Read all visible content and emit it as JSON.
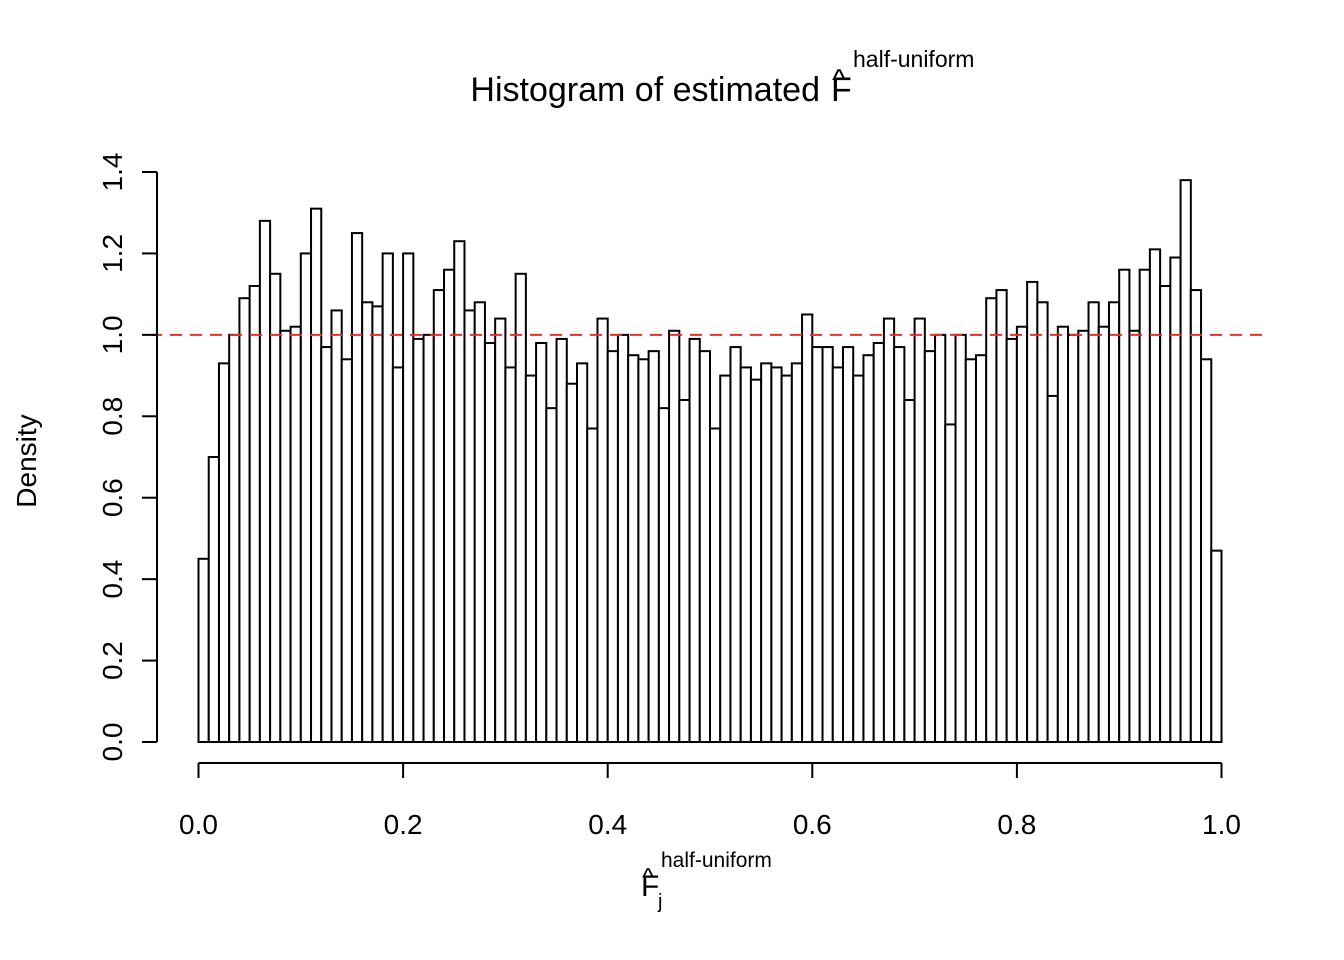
{
  "chart_data": {
    "type": "bar",
    "title": {
      "text": "Histogram of estimated ",
      "symbol": "F",
      "hat": "^",
      "superscript": "half-uniform"
    },
    "xlabel": {
      "symbol": "F",
      "hat": "^",
      "subscript": "j",
      "superscript": "half-uniform"
    },
    "ylabel": "Density",
    "xlim": [
      0,
      1
    ],
    "ylim": [
      0,
      1.4
    ],
    "xticks": [
      "0.0",
      "0.2",
      "0.4",
      "0.6",
      "0.8",
      "1.0"
    ],
    "yticks": [
      "0.0",
      "0.2",
      "0.4",
      "0.6",
      "0.8",
      "1.0",
      "1.2",
      "1.4"
    ],
    "bin_width": 0.01,
    "values": [
      0.45,
      0.7,
      0.93,
      1.0,
      1.09,
      1.12,
      1.28,
      1.15,
      1.01,
      1.02,
      1.2,
      1.31,
      0.97,
      1.06,
      0.94,
      1.25,
      1.08,
      1.07,
      1.2,
      0.92,
      1.2,
      0.99,
      1.0,
      1.11,
      1.16,
      1.23,
      1.06,
      1.08,
      0.98,
      1.04,
      0.92,
      1.15,
      0.9,
      0.98,
      0.82,
      0.99,
      0.88,
      0.93,
      0.77,
      1.04,
      0.96,
      1.0,
      0.95,
      0.94,
      0.96,
      0.82,
      1.01,
      0.84,
      0.99,
      0.96,
      0.77,
      0.9,
      0.97,
      0.92,
      0.89,
      0.93,
      0.92,
      0.9,
      0.93,
      1.05,
      0.97,
      0.97,
      0.92,
      0.97,
      0.9,
      0.95,
      0.98,
      1.04,
      0.97,
      0.84,
      1.04,
      0.96,
      1.0,
      0.78,
      1.0,
      0.94,
      0.95,
      1.09,
      1.11,
      0.99,
      1.02,
      1.13,
      1.08,
      0.85,
      1.02,
      1.0,
      1.01,
      1.08,
      1.02,
      1.08,
      1.16,
      1.01,
      1.16,
      1.21,
      1.12,
      1.19,
      1.38,
      1.11,
      0.94,
      0.47
    ],
    "reference_line": {
      "y": 1.0,
      "style": "dashed",
      "color": "#e8302a"
    },
    "bar_fill": "#ffffff",
    "bar_stroke": "#000000",
    "grid": false
  }
}
